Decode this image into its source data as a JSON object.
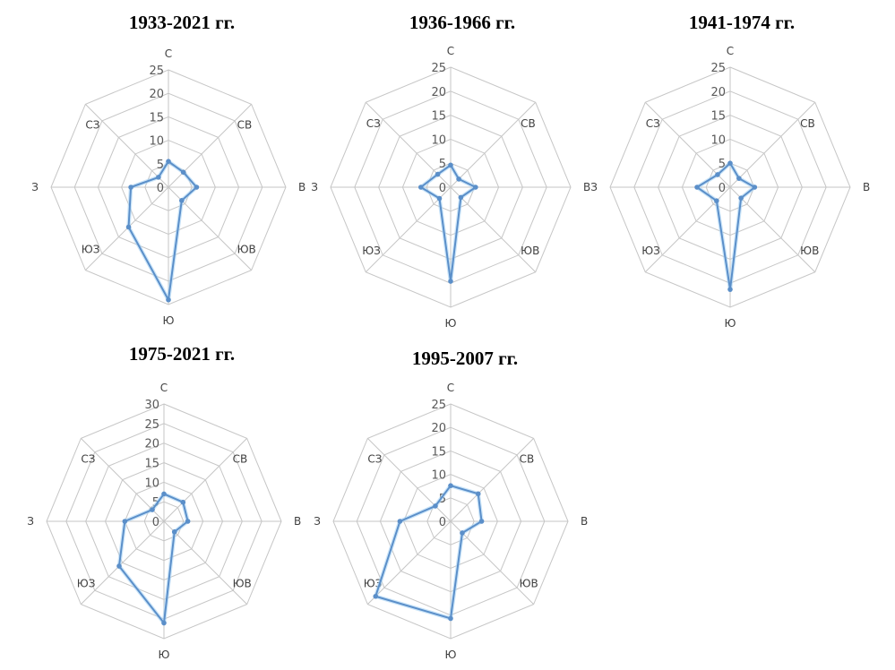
{
  "chart_data": [
    {
      "type": "radar",
      "title": "1933-2021 гг.",
      "categories": [
        "С",
        "СВ",
        "В",
        "ЮВ",
        "Ю",
        "ЮЗ",
        "З",
        "СЗ"
      ],
      "values": [
        5.5,
        4.5,
        6,
        4,
        24,
        12,
        8,
        3
      ],
      "rmax": 25,
      "ticks": [
        0,
        5,
        10,
        15,
        20,
        25
      ],
      "grid": true,
      "color": "#5b8fc9"
    },
    {
      "type": "radar",
      "title": "1936-1966 гг.",
      "categories": [
        "С",
        "СВ",
        "В",
        "ЮВ",
        "Ю",
        "ЮЗ",
        "З",
        "СЗ"
      ],
      "values": [
        4.6,
        2.4,
        5.2,
        3,
        19.6,
        3.3,
        6.2,
        3.8
      ],
      "rmax": 25,
      "ticks": [
        0,
        5,
        10,
        15,
        20,
        25
      ],
      "grid": true,
      "color": "#5b8fc9"
    },
    {
      "type": "radar",
      "title": "1941-1974 гг.",
      "categories": [
        "С",
        "СВ",
        "В",
        "ЮВ",
        "Ю",
        "ЮЗ",
        "З",
        "СЗ"
      ],
      "values": [
        5,
        2.6,
        5.1,
        3.2,
        21.3,
        4,
        6.9,
        3.7
      ],
      "rmax": 25,
      "ticks": [
        0,
        5,
        10,
        15,
        20,
        25
      ],
      "grid": true,
      "color": "#5b8fc9"
    },
    {
      "type": "radar",
      "title": "1975-2021 гг.",
      "categories": [
        "С",
        "СВ",
        "В",
        "ЮВ",
        "Ю",
        "ЮЗ",
        "З",
        "СЗ"
      ],
      "values": [
        7,
        6.9,
        6.1,
        3.8,
        26,
        16.2,
        10,
        4.2
      ],
      "rmax": 30,
      "ticks": [
        0,
        5,
        10,
        15,
        20,
        25,
        30
      ],
      "grid": true,
      "color": "#5b8fc9"
    },
    {
      "type": "radar",
      "title": "1995-2007 гг.",
      "categories": [
        "С",
        "СВ",
        "В",
        "ЮВ",
        "Ю",
        "ЮЗ",
        "З",
        "СЗ"
      ],
      "values": [
        7.6,
        8.3,
        6.6,
        3.5,
        20.7,
        22.6,
        10.8,
        4.6
      ],
      "rmax": 25,
      "ticks": [
        0,
        5,
        10,
        15,
        20,
        25
      ],
      "grid": true,
      "color": "#5b8fc9"
    }
  ]
}
